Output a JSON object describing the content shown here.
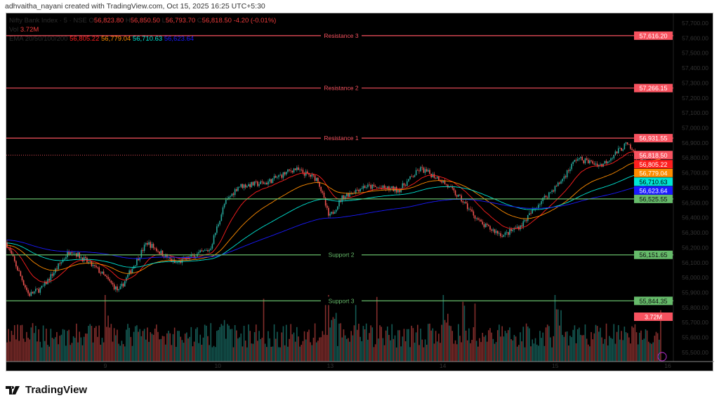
{
  "credit": "adhvaitha_nayani created with TradingView.com, Oct 15, 2025 16:25 UTC+5:30",
  "legend": {
    "symbol": "Nifty Bank Index · 5 · NSE",
    "o_label": "O",
    "o": "56,823.80",
    "h_label": "H",
    "h": "56,850.50",
    "l_label": "L",
    "l": "56,793.70",
    "c_label": "C",
    "c": "56,818.50",
    "change": "-4.20 (-0.01%)",
    "vol_label": "Vol",
    "vol": "3.72M",
    "ema_label": "EMA 20/50/100/200",
    "ema20": "56,805.22",
    "ema50": "56,779.04",
    "ema100": "56,710.63",
    "ema200": "56,623.64"
  },
  "brand": "TradingView",
  "colors": {
    "up": "#26a69a",
    "down": "#ef5350",
    "ema20": "#ff1f1f",
    "ema50": "#ff8c00",
    "ema100": "#00e5d4",
    "ema200": "#1a1aff",
    "resistance": "#f7525f",
    "support": "#66bb6a",
    "background": "#000000"
  },
  "chart_data": {
    "type": "candlestick",
    "interval": "5 min",
    "y_ticks": [
      "57,700.00",
      "57,600.00",
      "57,500.00",
      "57,400.00",
      "57,300.00",
      "57,200.00",
      "57,100.00",
      "57,000.00",
      "56,900.00",
      "56,800.00",
      "56,700.00",
      "56,600.00",
      "56,500.00",
      "56,400.00",
      "56,300.00",
      "56,200.00",
      "56,100.00",
      "56,000.00",
      "55,900.00",
      "55,800.00",
      "55,700.00",
      "55,600.00",
      "55,500.00"
    ],
    "ylim": [
      55450,
      57760
    ],
    "x_tick_labels": [
      "9",
      "10",
      "13",
      "14",
      "15",
      "16"
    ],
    "x_unit": "trading days from Oct 9 open",
    "xlim": [
      -0.88,
      5.05
    ],
    "price_path": [
      [
        -0.88,
        56235
      ],
      [
        -0.87,
        56212
      ],
      [
        -0.68,
        55884
      ],
      [
        -0.56,
        55931
      ],
      [
        -0.31,
        56188
      ],
      [
        -0.06,
        56048
      ],
      [
        0.12,
        55907
      ],
      [
        0.37,
        56235
      ],
      [
        0.62,
        56095
      ],
      [
        0.93,
        56188
      ],
      [
        1.06,
        56493
      ],
      [
        1.18,
        56610
      ],
      [
        1.43,
        56633
      ],
      [
        1.68,
        56727
      ],
      [
        1.89,
        56657
      ],
      [
        1.99,
        56399
      ],
      [
        2.11,
        56540
      ],
      [
        2.3,
        56610
      ],
      [
        2.61,
        56586
      ],
      [
        2.8,
        56727
      ],
      [
        2.98,
        56657
      ],
      [
        3.17,
        56516
      ],
      [
        3.35,
        56352
      ],
      [
        3.54,
        56282
      ],
      [
        3.7,
        56352
      ],
      [
        3.85,
        56493
      ],
      [
        4.04,
        56633
      ],
      [
        4.19,
        56797
      ],
      [
        4.41,
        56750
      ],
      [
        4.63,
        56890
      ],
      [
        4.75,
        56797
      ],
      [
        4.94,
        56818.5
      ]
    ],
    "levels": [
      {
        "name": "Resistance 3",
        "value": 57616.2,
        "label": "57,616.20",
        "kind": "resistance"
      },
      {
        "name": "Resistance 2",
        "value": 57266.15,
        "label": "57,266.15",
        "kind": "resistance"
      },
      {
        "name": "Resistance 1",
        "value": 56931.55,
        "label": "56,931.55",
        "kind": "resistance"
      },
      {
        "name": "",
        "value": 56525.55,
        "label": "56,525.55",
        "kind": "support"
      },
      {
        "name": "Support 2",
        "value": 56151.65,
        "label": "56,151.65",
        "kind": "support"
      },
      {
        "name": "Support 3",
        "value": 55844.35,
        "label": "55,844.35",
        "kind": "support"
      }
    ],
    "last_price": {
      "value": 56818.5,
      "label": "56,818.50"
    },
    "ema_values": [
      {
        "name": "EMA 20",
        "value": 56805.22,
        "label": "56,805.22",
        "color": "#ff1f1f"
      },
      {
        "name": "EMA 50",
        "value": 56779.04,
        "label": "56,779.04",
        "color": "#ff8c00"
      },
      {
        "name": "EMA 100",
        "value": 56710.63,
        "label": "56,710.63",
        "color": "#00e5d4"
      },
      {
        "name": "EMA 200",
        "value": 56623.64,
        "label": "56,623.64",
        "color": "#1a1aff"
      }
    ],
    "volume_label": "3.72M"
  }
}
